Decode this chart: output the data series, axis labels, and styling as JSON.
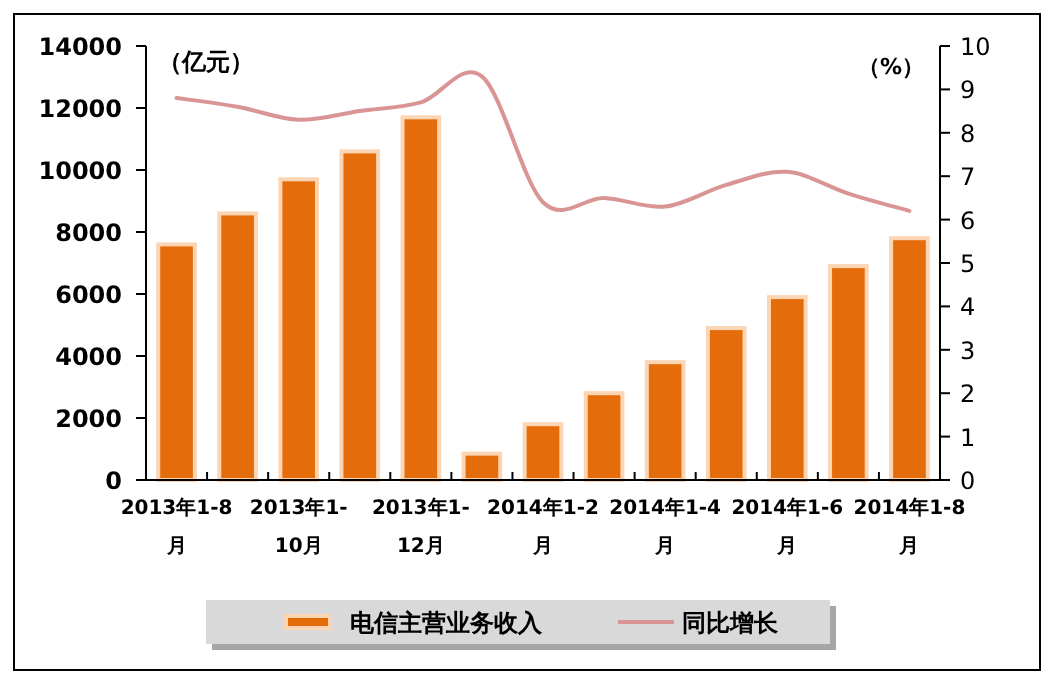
{
  "chart_data": {
    "type": "bar",
    "ylabel": "（亿元）",
    "y2label": "（%）",
    "categories": [
      "2013年1-8月",
      null,
      "2013年1-10月",
      null,
      "2013年1-12月",
      null,
      "2014年1-2月",
      null,
      "2014年1-4月",
      null,
      "2014年1-6月",
      null,
      "2014年1-8月"
    ],
    "series": [
      {
        "name": "电信主营业务收入",
        "color": "#e46c0a",
        "values": [
          7600,
          8600,
          9700,
          10600,
          11700,
          850,
          1800,
          2800,
          3800,
          4900,
          5900,
          6900,
          7800
        ]
      },
      {
        "name": "同比增长",
        "type": "line",
        "axis": "y2",
        "color": "#d99594",
        "values": [
          8.8,
          8.6,
          8.3,
          8.5,
          8.7,
          9.3,
          6.4,
          6.5,
          6.3,
          6.8,
          7.1,
          6.6,
          6.2
        ]
      }
    ],
    "ylim": [
      0,
      14000
    ],
    "yticks": [
      0,
      2000,
      4000,
      6000,
      8000,
      10000,
      12000,
      14000
    ],
    "y2lim": [
      0,
      10
    ],
    "y2ticks": [
      0,
      1,
      2,
      3,
      4,
      5,
      6,
      7,
      8,
      9,
      10
    ],
    "legend": "bottom",
    "marker": "none",
    "line_style": "solid"
  }
}
